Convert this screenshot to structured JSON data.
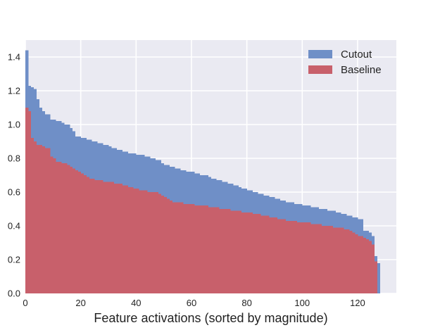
{
  "chart_data": {
    "type": "bar",
    "title": "",
    "xlabel": "Feature activations (sorted by magnitude)",
    "ylabel": "",
    "xlim": [
      0,
      134
    ],
    "ylim": [
      0,
      1.5
    ],
    "x_ticks": [
      0,
      20,
      40,
      60,
      80,
      100,
      120
    ],
    "x_tick_labels": [
      "0",
      "20",
      "40",
      "60",
      "80",
      "100",
      "120"
    ],
    "y_ticks": [
      0.0,
      0.2,
      0.4,
      0.6,
      0.8,
      1.0,
      1.2,
      1.4
    ],
    "y_tick_labels": [
      "0.0",
      "0.2",
      "0.4",
      "0.6",
      "0.8",
      "1.0",
      "1.2",
      "1.4"
    ],
    "grid": true,
    "legend_position": "top-right",
    "bar_width": 1,
    "series": [
      {
        "name": "Cutout",
        "color": "#6f8fc7",
        "values": [
          1.44,
          1.23,
          1.22,
          1.21,
          1.15,
          1.1,
          1.08,
          1.06,
          1.06,
          1.03,
          1.03,
          1.02,
          1.02,
          1.01,
          1.0,
          1.0,
          0.98,
          0.96,
          0.93,
          0.93,
          0.92,
          0.92,
          0.91,
          0.91,
          0.9,
          0.9,
          0.89,
          0.89,
          0.88,
          0.88,
          0.87,
          0.86,
          0.86,
          0.85,
          0.85,
          0.84,
          0.84,
          0.83,
          0.83,
          0.83,
          0.82,
          0.82,
          0.82,
          0.81,
          0.81,
          0.8,
          0.8,
          0.79,
          0.79,
          0.77,
          0.76,
          0.76,
          0.75,
          0.75,
          0.74,
          0.74,
          0.73,
          0.73,
          0.72,
          0.72,
          0.72,
          0.71,
          0.71,
          0.7,
          0.7,
          0.7,
          0.69,
          0.68,
          0.68,
          0.67,
          0.67,
          0.66,
          0.66,
          0.65,
          0.65,
          0.64,
          0.64,
          0.63,
          0.62,
          0.62,
          0.61,
          0.61,
          0.6,
          0.6,
          0.59,
          0.59,
          0.58,
          0.58,
          0.57,
          0.57,
          0.56,
          0.56,
          0.55,
          0.55,
          0.54,
          0.54,
          0.54,
          0.53,
          0.53,
          0.53,
          0.52,
          0.52,
          0.52,
          0.51,
          0.51,
          0.51,
          0.5,
          0.5,
          0.5,
          0.49,
          0.49,
          0.49,
          0.48,
          0.48,
          0.47,
          0.47,
          0.46,
          0.46,
          0.45,
          0.45,
          0.44,
          0.44,
          0.37,
          0.37,
          0.36,
          0.34,
          0.22,
          0.18
        ]
      },
      {
        "name": "Baseline",
        "color": "#c8606b",
        "values": [
          1.1,
          1.08,
          0.92,
          0.9,
          0.88,
          0.88,
          0.87,
          0.86,
          0.86,
          0.81,
          0.8,
          0.78,
          0.78,
          0.77,
          0.77,
          0.76,
          0.75,
          0.74,
          0.73,
          0.72,
          0.71,
          0.7,
          0.69,
          0.68,
          0.68,
          0.67,
          0.67,
          0.67,
          0.66,
          0.66,
          0.66,
          0.66,
          0.65,
          0.65,
          0.65,
          0.64,
          0.64,
          0.63,
          0.63,
          0.62,
          0.62,
          0.61,
          0.61,
          0.61,
          0.6,
          0.6,
          0.6,
          0.6,
          0.59,
          0.58,
          0.57,
          0.56,
          0.55,
          0.54,
          0.54,
          0.54,
          0.54,
          0.53,
          0.53,
          0.53,
          0.53,
          0.52,
          0.52,
          0.52,
          0.52,
          0.52,
          0.51,
          0.51,
          0.51,
          0.51,
          0.5,
          0.5,
          0.5,
          0.5,
          0.49,
          0.49,
          0.49,
          0.49,
          0.48,
          0.48,
          0.48,
          0.48,
          0.47,
          0.47,
          0.47,
          0.46,
          0.46,
          0.46,
          0.45,
          0.45,
          0.45,
          0.44,
          0.44,
          0.44,
          0.43,
          0.43,
          0.43,
          0.43,
          0.42,
          0.42,
          0.42,
          0.42,
          0.42,
          0.41,
          0.41,
          0.41,
          0.41,
          0.4,
          0.4,
          0.4,
          0.4,
          0.39,
          0.39,
          0.39,
          0.39,
          0.38,
          0.38,
          0.37,
          0.36,
          0.35,
          0.34,
          0.34,
          0.33,
          0.32,
          0.31,
          0.29,
          0.19,
          0.0
        ]
      }
    ]
  }
}
